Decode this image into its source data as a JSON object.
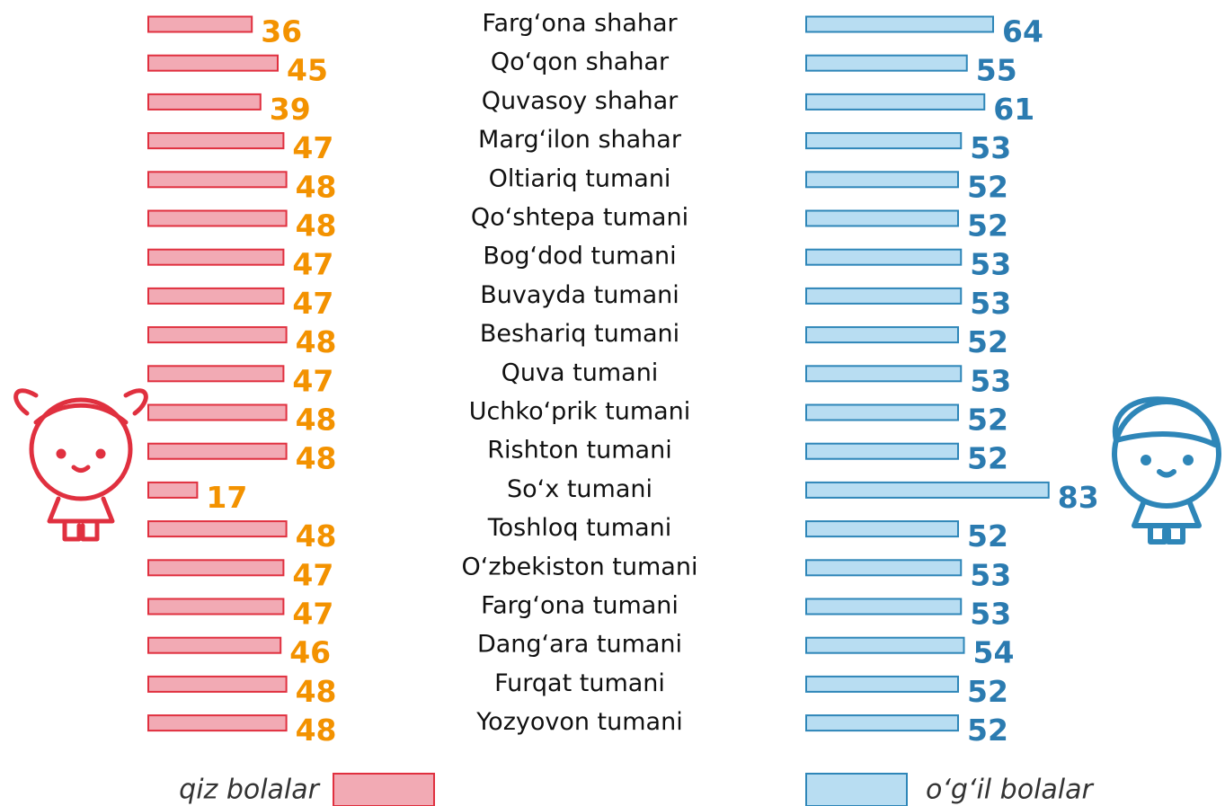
{
  "chart_data": {
    "type": "bar",
    "categories": [
      "Farg‘ona shahar",
      "Qo‘qon shahar",
      "Quvasoy shahar",
      "Marg‘ilon shahar",
      "Oltiariq tumani",
      "Qo‘shtepa tumani",
      "Bog‘dod tumani",
      "Buvayda tumani",
      "Beshariq tumani",
      "Quva tumani",
      "Uchko‘prik tumani",
      "Rishton tumani",
      "So‘x tumani",
      "Toshloq tumani",
      "O‘zbekiston tumani",
      "Farg‘ona tumani",
      "Dang‘ara tumani",
      "Furqat tumani",
      "Yozyovon tumani"
    ],
    "series": [
      {
        "name": "qiz bolalar",
        "color": "#f2aab4",
        "values": [
          36,
          45,
          39,
          47,
          48,
          48,
          47,
          47,
          48,
          47,
          48,
          48,
          17,
          48,
          47,
          47,
          46,
          48,
          48
        ]
      },
      {
        "name": "o‘g‘il bolalar",
        "color": "#b8ddf2",
        "values": [
          64,
          55,
          61,
          53,
          52,
          52,
          53,
          53,
          52,
          53,
          52,
          52,
          83,
          52,
          53,
          53,
          54,
          52,
          52
        ]
      }
    ]
  }
}
